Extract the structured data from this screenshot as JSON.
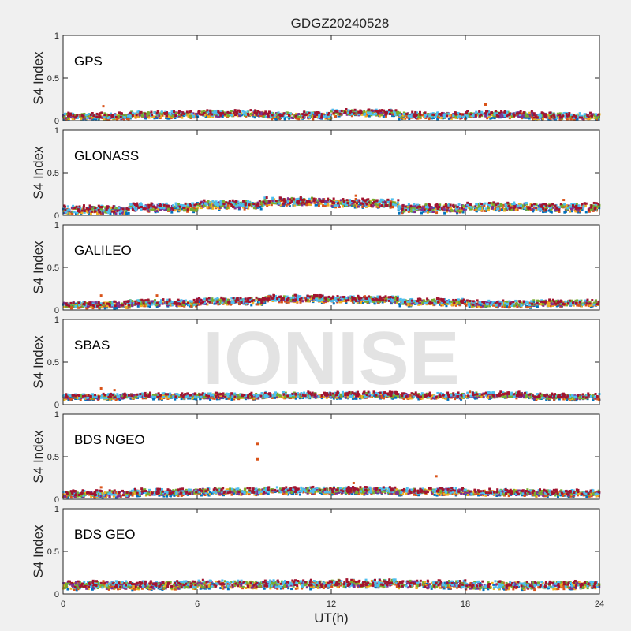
{
  "figure": {
    "title": "GDGZ20240528",
    "xlabel": "UT(h)",
    "watermark": "IONISE"
  },
  "chart_data": {
    "type": "scatter",
    "title": "GDGZ20240528",
    "xlabel": "UT(h)",
    "ylabel": "S4 Index",
    "xlim": [
      0,
      24
    ],
    "ylim": [
      0,
      1
    ],
    "xticks": [
      "0",
      "6",
      "12",
      "18",
      "24"
    ],
    "yticks": [
      "0",
      "0.5",
      "1"
    ],
    "grid": false,
    "panels": [
      {
        "label": "GPS",
        "base": [
          0.05,
          0.07,
          0.08,
          0.06,
          0.09,
          0.06,
          0.07,
          0.05
        ],
        "spread": 0.03,
        "outliers": [
          [
            1.8,
            0.17
          ],
          [
            18.9,
            0.19
          ]
        ]
      },
      {
        "label": "GLONASS",
        "base": [
          0.06,
          0.09,
          0.12,
          0.16,
          0.14,
          0.08,
          0.1,
          0.09
        ],
        "spread": 0.04,
        "outliers": [
          [
            13.1,
            0.23
          ],
          [
            13.1,
            0.19
          ],
          [
            22.4,
            0.18
          ]
        ]
      },
      {
        "label": "GALILEO",
        "base": [
          0.06,
          0.08,
          0.1,
          0.13,
          0.12,
          0.09,
          0.07,
          0.08
        ],
        "spread": 0.03,
        "outliers": [
          [
            1.7,
            0.17
          ],
          [
            4.2,
            0.17
          ],
          [
            9.2,
            0.16
          ],
          [
            13.5,
            0.16
          ]
        ]
      },
      {
        "label": "SBAS",
        "base": [
          0.09,
          0.1,
          0.1,
          0.11,
          0.11,
          0.1,
          0.11,
          0.09
        ],
        "spread": 0.025,
        "outliers": [
          [
            1.7,
            0.19
          ],
          [
            2.3,
            0.17
          ],
          [
            18.2,
            0.15
          ]
        ]
      },
      {
        "label": "BDS NGEO",
        "base": [
          0.06,
          0.08,
          0.09,
          0.1,
          0.1,
          0.09,
          0.08,
          0.07
        ],
        "spread": 0.03,
        "outliers": [
          [
            8.7,
            0.65
          ],
          [
            8.7,
            0.47
          ],
          [
            13.0,
            0.19
          ],
          [
            16.7,
            0.27
          ],
          [
            1.7,
            0.14
          ]
        ]
      },
      {
        "label": "BDS GEO",
        "base": [
          0.1,
          0.1,
          0.11,
          0.11,
          0.12,
          0.11,
          0.1,
          0.1
        ],
        "spread": 0.04,
        "outliers": [
          [
            1.8,
            0.15
          ],
          [
            13.0,
            0.16
          ]
        ]
      }
    ],
    "series_colors": [
      "#0072BD",
      "#D95319",
      "#EDB120",
      "#7E2F8E",
      "#77AC30",
      "#4DBEEE",
      "#A2142F"
    ]
  }
}
